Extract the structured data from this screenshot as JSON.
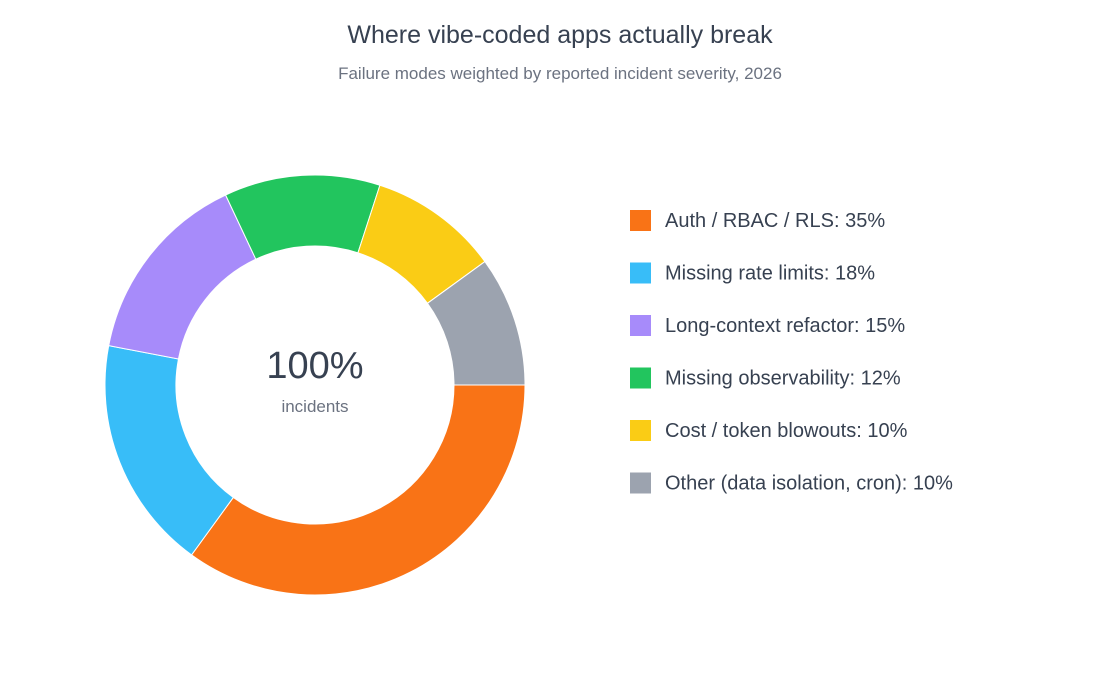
{
  "chart_data": {
    "type": "pie",
    "variant": "donut",
    "title": "Where vibe-coded apps actually break",
    "subtitle": "Failure modes weighted by reported incident severity, 2026",
    "center_value": "100%",
    "center_label": "incidents",
    "legend_position": "right",
    "slices": [
      {
        "label": "Auth / RBAC / RLS",
        "value": 35,
        "display": "Auth / RBAC / RLS: 35%",
        "color": "#f97316"
      },
      {
        "label": "Missing rate limits",
        "value": 18,
        "display": "Missing rate limits: 18%",
        "color": "#38bdf8"
      },
      {
        "label": "Long-context refactor",
        "value": 15,
        "display": "Long-context refactor: 15%",
        "color": "#a78bfa"
      },
      {
        "label": "Missing observability",
        "value": 12,
        "display": "Missing observability: 12%",
        "color": "#22c55e"
      },
      {
        "label": "Cost / token blowouts",
        "value": 10,
        "display": "Cost / token blowouts: 10%",
        "color": "#facc15"
      },
      {
        "label": "Other (data isolation, cron)",
        "value": 10,
        "display": "Other (data isolation, cron): 10%",
        "color": "#9ca3af"
      }
    ]
  }
}
